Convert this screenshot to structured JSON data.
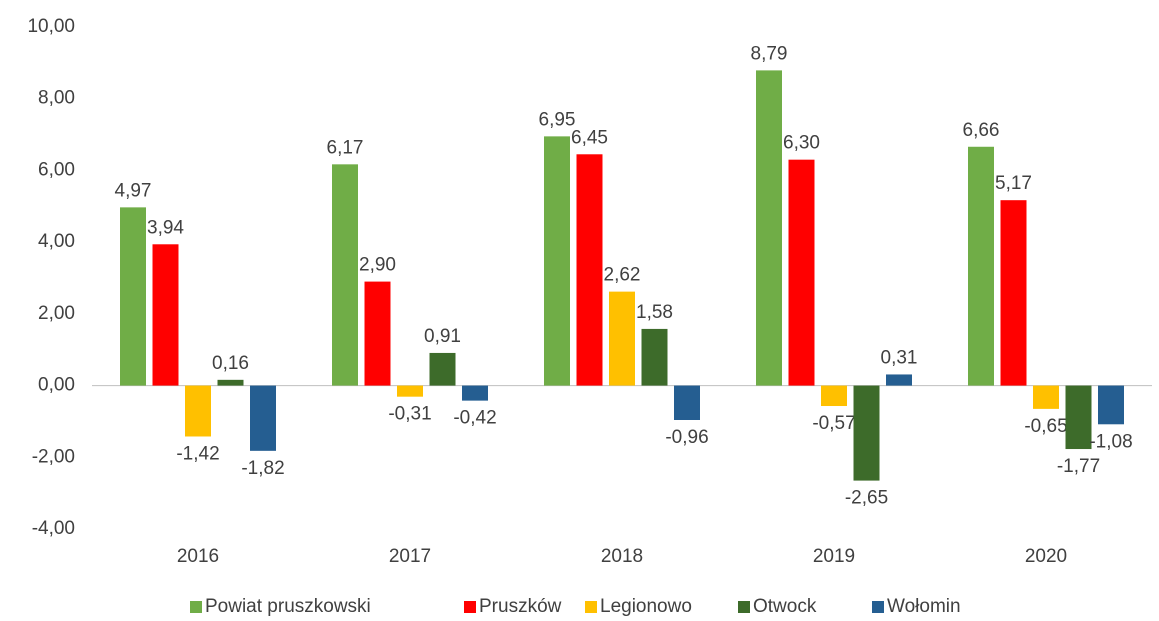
{
  "chart_data": {
    "type": "bar",
    "categories": [
      "2016",
      "2017",
      "2018",
      "2019",
      "2020"
    ],
    "series": [
      {
        "name": "Powiat pruszkowski",
        "color": "#70ad47",
        "values": [
          4.97,
          6.17,
          6.95,
          8.79,
          6.66
        ],
        "value_labels": [
          "4,97",
          "6,17",
          "6,95",
          "8,79",
          "6,66"
        ]
      },
      {
        "name": "Pruszków",
        "color": "#ff0000",
        "values": [
          3.94,
          2.9,
          6.45,
          6.3,
          5.17
        ],
        "value_labels": [
          "3,94",
          "2,90",
          "6,45",
          "6,30",
          "5,17"
        ]
      },
      {
        "name": "Legionowo",
        "color": "#ffc000",
        "values": [
          -1.42,
          -0.31,
          2.62,
          -0.57,
          -0.65
        ],
        "value_labels": [
          "-1,42",
          "-0,31",
          "2,62",
          "-0,57",
          "-0,65"
        ]
      },
      {
        "name": "Otwock",
        "color": "#3d6b2a",
        "values": [
          0.16,
          0.91,
          1.58,
          -2.65,
          -1.77
        ],
        "value_labels": [
          "0,16",
          "0,91",
          "1,58",
          "-2,65",
          "-1,77"
        ]
      },
      {
        "name": "Wołomin",
        "color": "#255e91",
        "values": [
          -1.82,
          -0.42,
          -0.96,
          0.31,
          -1.08
        ],
        "value_labels": [
          "-1,82",
          "-0,42",
          "-0,96",
          "0,31",
          "-1,08"
        ]
      }
    ],
    "ylim": [
      -4,
      10
    ],
    "yticks": [
      {
        "value": -4,
        "label": "-4,00"
      },
      {
        "value": -2,
        "label": "-2,00"
      },
      {
        "value": 0,
        "label": "0,00"
      },
      {
        "value": 2,
        "label": "2,00"
      },
      {
        "value": 4,
        "label": "4,00"
      },
      {
        "value": 6,
        "label": "6,00"
      },
      {
        "value": 8,
        "label": "8,00"
      },
      {
        "value": 10,
        "label": "10,00"
      }
    ],
    "grid": false,
    "legend": "bottom"
  }
}
